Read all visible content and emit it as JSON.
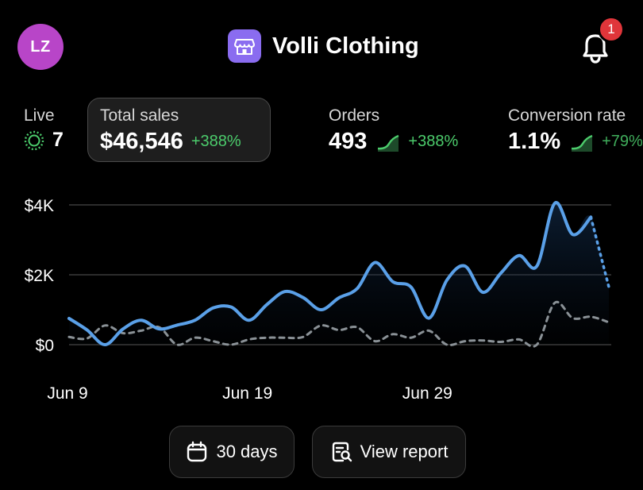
{
  "header": {
    "avatar_initials": "LZ",
    "store_name": "Volli Clothing",
    "notification_count": "1"
  },
  "metrics": {
    "live": {
      "label": "Live",
      "value": "7"
    },
    "total_sales": {
      "label": "Total sales",
      "value": "$46,546",
      "change": "+388%"
    },
    "orders": {
      "label": "Orders",
      "value": "493",
      "change": "+388%"
    },
    "conversion_rate": {
      "label": "Conversion rate",
      "value": "1.1%",
      "change": "+79%"
    }
  },
  "colors": {
    "accent_avatar": "#b845c8",
    "brand_icon": "#8a6cf0",
    "badge": "#e0353a",
    "positive": "#4ccc6c",
    "current_series": "#5aa0e8",
    "previous_series": "#8a9196"
  },
  "chart_data": {
    "type": "line",
    "x_tick_labels": [
      "Jun 9",
      "Jun 19",
      "Jun 29"
    ],
    "y_tick_labels": [
      "$0",
      "$2K",
      "$4K"
    ],
    "ylim": [
      0,
      4000
    ],
    "grid": true,
    "series": [
      {
        "style": "solid",
        "values": [
          750,
          420,
          0,
          450,
          700,
          450,
          560,
          700,
          1050,
          1080,
          700,
          1150,
          1520,
          1350,
          1000,
          1340,
          1600,
          2350,
          1800,
          1650,
          760,
          1850,
          2250,
          1500,
          2050,
          2550,
          2250,
          4050,
          3150,
          3650,
          1650
        ],
        "projected_from_index": 29
      },
      {
        "style": "dashed",
        "values": [
          220,
          180,
          550,
          330,
          400,
          500,
          0,
          200,
          100,
          0,
          150,
          200,
          200,
          220,
          550,
          420,
          500,
          100,
          300,
          200,
          400,
          0,
          100,
          120,
          80,
          150,
          0,
          1200,
          760,
          800,
          640
        ]
      }
    ]
  },
  "actions": {
    "range_label": "30 days",
    "report_label": "View report"
  }
}
